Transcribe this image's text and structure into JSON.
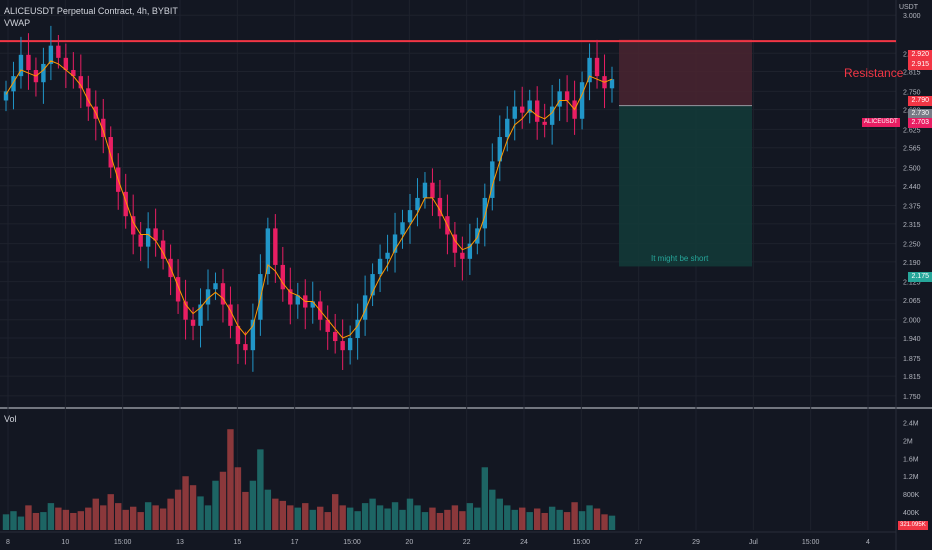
{
  "header": {
    "symbol_line": "ALICEUSDT Perpetual Contract, 4h, BYBIT",
    "indicator": "VWAP",
    "currency": "USDT"
  },
  "volume_pane": {
    "label": "Vol",
    "last_value": "321.095K"
  },
  "annotations": {
    "resistance": "Resistance",
    "zone_note": "It might be short",
    "symbol_tag": "ALICEUSDT"
  },
  "price_tags": [
    "2.920",
    "2.915",
    "2.790",
    "2.730",
    "2.703",
    "2.175"
  ],
  "colors": {
    "background": "#131722",
    "up": "#26a69a",
    "down": "#ef5350",
    "candle_up_edge": "#2196c8",
    "candle_down_edge": "#e91e63",
    "vwap": "#ff9800",
    "resistance_line": "#f23645",
    "stop_zone": "#4a2430",
    "target_zone": "#133837"
  },
  "chart_data": [
    {
      "type": "candlestick",
      "title": "ALICEUSDT Perpetual Contract, 4h, BYBIT",
      "x_ticks": [
        "8",
        "10",
        "15:00",
        "13",
        "15",
        "17",
        "15:00",
        "20",
        "22",
        "24",
        "15:00",
        "27",
        "29",
        "Jul",
        "15:00",
        "4"
      ],
      "y_ticks": [
        "3.000",
        "2.875",
        "2.815",
        "2.750",
        "2.690",
        "2.625",
        "2.565",
        "2.500",
        "2.440",
        "2.375",
        "2.315",
        "2.250",
        "2.190",
        "2.125",
        "2.065",
        "2.000",
        "1.940",
        "1.875",
        "1.815",
        "1.750"
      ],
      "ylim": [
        1.72,
        3.05
      ],
      "resistance_level": 2.915,
      "position": {
        "entry": 2.703,
        "stop": 2.92,
        "target": 2.175
      },
      "close_series": [
        2.75,
        2.8,
        2.87,
        2.82,
        2.78,
        2.84,
        2.9,
        2.86,
        2.82,
        2.8,
        2.76,
        2.7,
        2.66,
        2.6,
        2.5,
        2.42,
        2.34,
        2.28,
        2.24,
        2.3,
        2.26,
        2.2,
        2.14,
        2.06,
        2.0,
        1.98,
        2.05,
        2.1,
        2.12,
        2.05,
        1.98,
        1.92,
        1.9,
        2.0,
        2.15,
        2.3,
        2.18,
        2.1,
        2.05,
        2.08,
        2.04,
        2.06,
        2.0,
        1.96,
        1.93,
        1.9,
        1.94,
        2.0,
        2.08,
        2.15,
        2.2,
        2.22,
        2.28,
        2.32,
        2.36,
        2.4,
        2.45,
        2.4,
        2.34,
        2.28,
        2.22,
        2.2,
        2.25,
        2.3,
        2.4,
        2.52,
        2.6,
        2.66,
        2.7,
        2.68,
        2.72,
        2.65,
        2.64,
        2.7,
        2.75,
        2.72,
        2.66,
        2.78,
        2.86,
        2.8,
        2.76,
        2.79
      ],
      "vwap": [
        2.74,
        2.78,
        2.82,
        2.81,
        2.8,
        2.82,
        2.85,
        2.84,
        2.82,
        2.8,
        2.77,
        2.72,
        2.68,
        2.62,
        2.54,
        2.46,
        2.39,
        2.32,
        2.28,
        2.28,
        2.26,
        2.22,
        2.17,
        2.11,
        2.05,
        2.02,
        2.04,
        2.07,
        2.09,
        2.07,
        2.03,
        1.98,
        1.95,
        1.98,
        2.07,
        2.18,
        2.16,
        2.12,
        2.09,
        2.08,
        2.06,
        2.06,
        2.03,
        2.0,
        1.97,
        1.94,
        1.95,
        1.98,
        2.03,
        2.09,
        2.14,
        2.18,
        2.23,
        2.27,
        2.31,
        2.35,
        2.4,
        2.4,
        2.36,
        2.31,
        2.26,
        2.23,
        2.24,
        2.27,
        2.34,
        2.44,
        2.52,
        2.59,
        2.64,
        2.66,
        2.69,
        2.67,
        2.66,
        2.68,
        2.72,
        2.72,
        2.69,
        2.74,
        2.8,
        2.79,
        2.78,
        2.79
      ],
      "volume": {
        "y_ticks": [
          "2.4M",
          "2M",
          "1.6M",
          "1.2M",
          "800K",
          "400K"
        ],
        "ylim": [
          0,
          2.5
        ],
        "values_millions": [
          0.35,
          0.42,
          0.3,
          0.55,
          0.38,
          0.4,
          0.6,
          0.5,
          0.45,
          0.38,
          0.42,
          0.5,
          0.7,
          0.55,
          0.8,
          0.6,
          0.45,
          0.52,
          0.4,
          0.62,
          0.55,
          0.48,
          0.7,
          0.9,
          1.2,
          1.0,
          0.75,
          0.55,
          1.1,
          1.3,
          2.25,
          1.4,
          0.85,
          1.1,
          1.8,
          0.9,
          0.7,
          0.65,
          0.55,
          0.5,
          0.6,
          0.45,
          0.52,
          0.4,
          0.8,
          0.55,
          0.5,
          0.42,
          0.6,
          0.7,
          0.55,
          0.48,
          0.62,
          0.45,
          0.7,
          0.55,
          0.4,
          0.5,
          0.38,
          0.45,
          0.55,
          0.42,
          0.6,
          0.5,
          1.4,
          0.9,
          0.7,
          0.55,
          0.45,
          0.5,
          0.4,
          0.48,
          0.38,
          0.52,
          0.45,
          0.4,
          0.62,
          0.42,
          0.55,
          0.48,
          0.35,
          0.32
        ]
      }
    }
  ]
}
